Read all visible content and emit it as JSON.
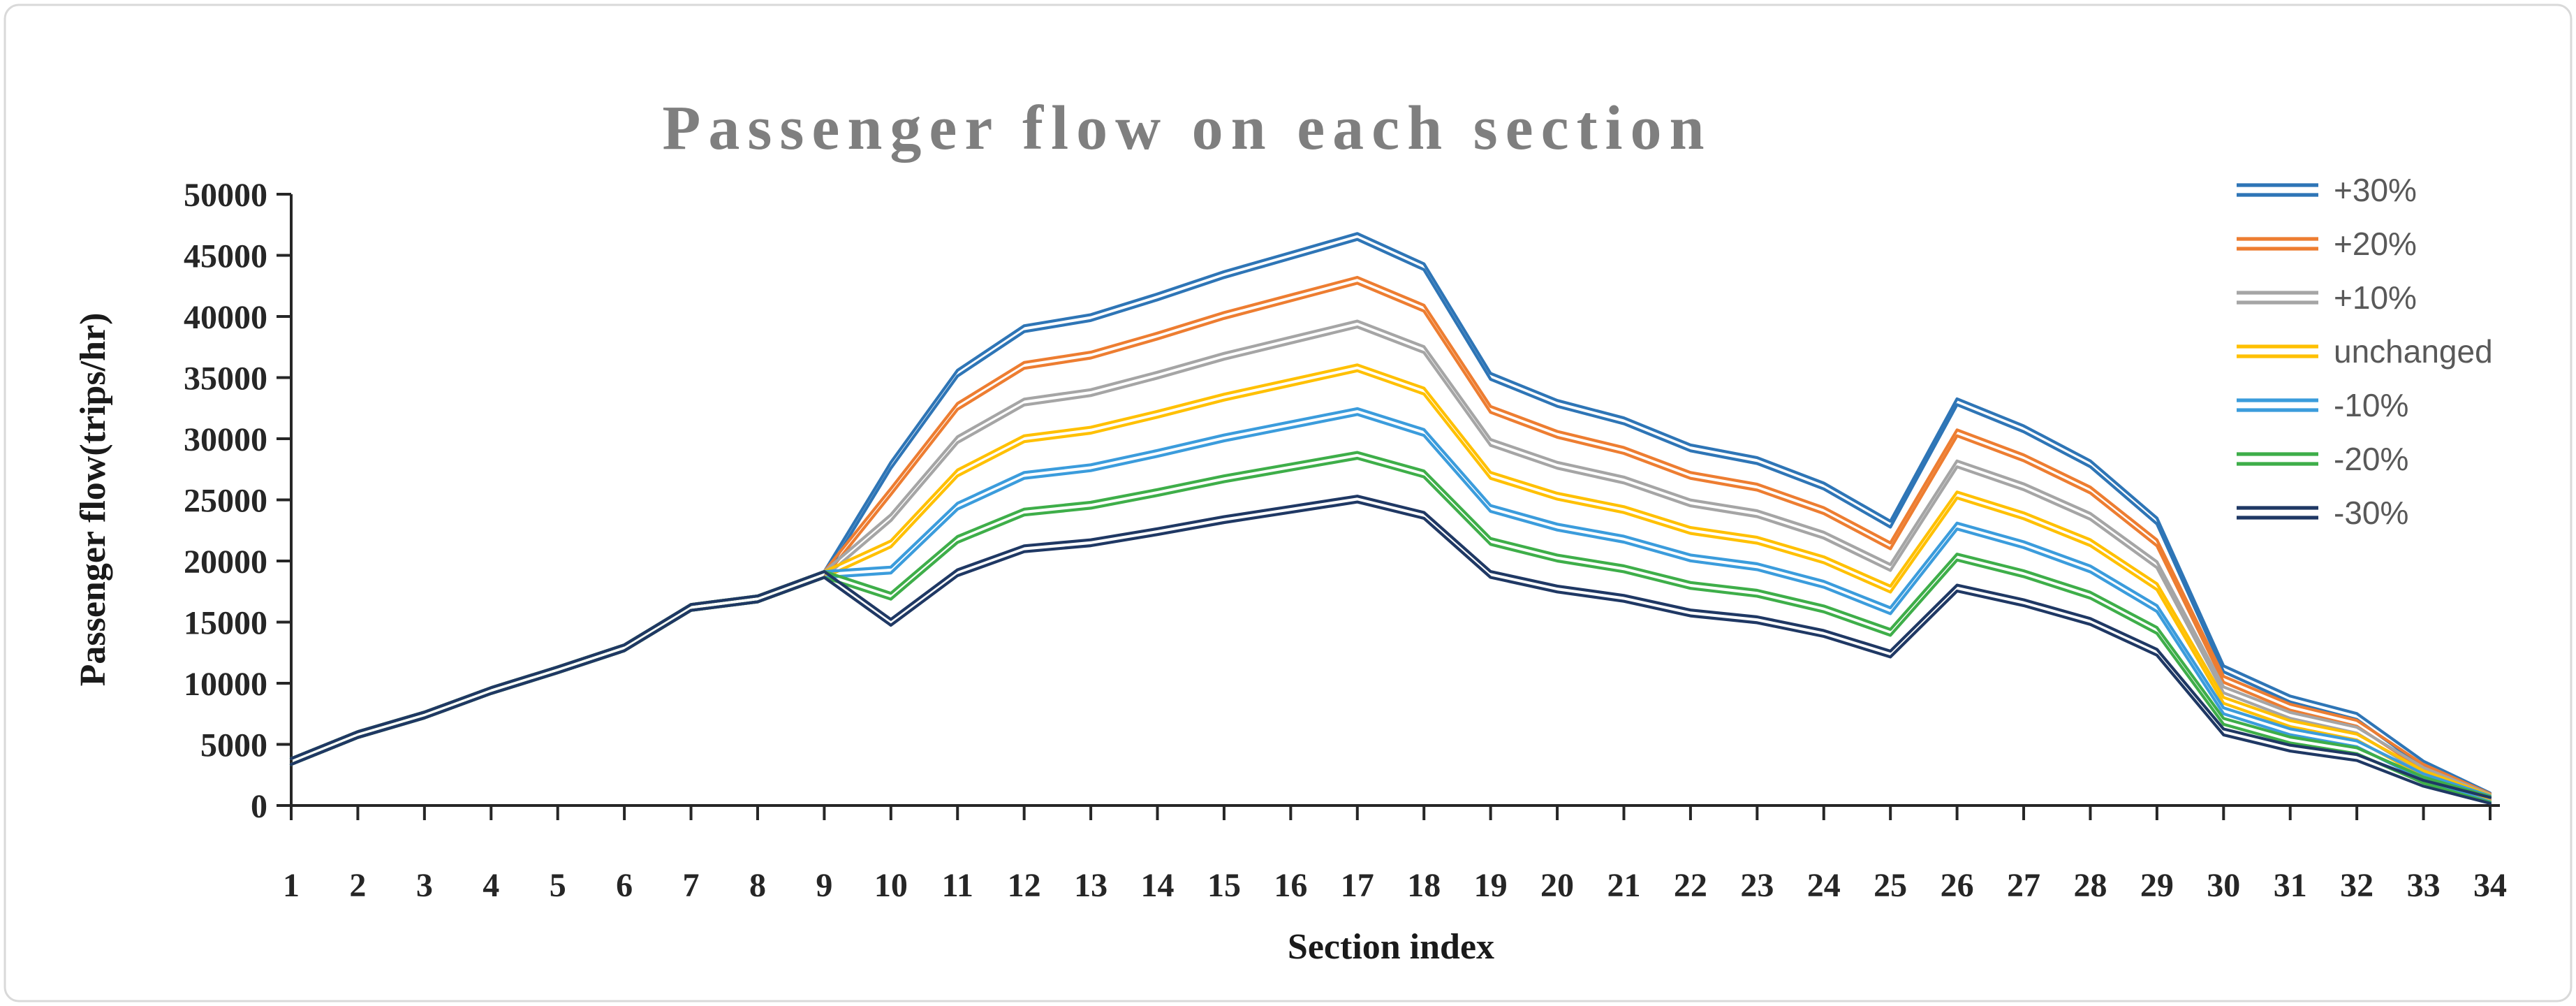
{
  "chart_data": {
    "type": "line",
    "title": "Passenger flow on each section",
    "xlabel": "Section index",
    "ylabel": "Passenger flow(trips/hr)",
    "x_categories": [
      1,
      2,
      3,
      4,
      5,
      6,
      7,
      8,
      9,
      10,
      11,
      12,
      13,
      14,
      15,
      16,
      17,
      18,
      19,
      20,
      21,
      22,
      23,
      24,
      25,
      26,
      27,
      28,
      29,
      30,
      31,
      32,
      33,
      34
    ],
    "y_ticks": [
      0,
      5000,
      10000,
      15000,
      20000,
      25000,
      30000,
      35000,
      40000,
      45000,
      50000
    ],
    "ylim": [
      0,
      50000
    ],
    "grid": false,
    "legend_position": "right",
    "line_style": "double-parallel-lines",
    "note_sections_1_9_identical": true,
    "series": [
      {
        "name": "+30%",
        "color": "#2E75B6",
        "factor": 1.3,
        "values": [
          3600,
          5800,
          7400,
          9400,
          11100,
          12900,
          16200,
          16900,
          18900,
          27820,
          35360,
          39000,
          39910,
          41600,
          43420,
          44980,
          46540,
          44070,
          35100,
          32890,
          31460,
          29250,
          28210,
          26130,
          23010,
          33020,
          30810,
          27950,
          23270,
          11180,
          8710,
          7280,
          3380,
          780
        ]
      },
      {
        "name": "+20%",
        "color": "#ED7D31",
        "factor": 1.2,
        "values": [
          3600,
          5800,
          7400,
          9400,
          11100,
          12900,
          16200,
          16900,
          18900,
          25680,
          32640,
          36000,
          36840,
          38400,
          40080,
          41520,
          42960,
          40680,
          32400,
          30360,
          29040,
          27000,
          26040,
          24120,
          21240,
          30480,
          28440,
          25800,
          21480,
          10320,
          8040,
          6720,
          3120,
          720
        ]
      },
      {
        "name": "+10%",
        "color": "#A5A5A5",
        "factor": 1.1,
        "values": [
          3600,
          5800,
          7400,
          9400,
          11100,
          12900,
          16200,
          16900,
          18900,
          23540,
          29920,
          33000,
          33770,
          35200,
          36740,
          38060,
          39380,
          37290,
          29700,
          27830,
          26620,
          24750,
          23870,
          22110,
          19470,
          27940,
          26070,
          23650,
          19690,
          9460,
          7370,
          6160,
          2860,
          660
        ]
      },
      {
        "name": "unchanged",
        "color": "#FFC000",
        "factor": 1.0,
        "values": [
          3600,
          5800,
          7400,
          9400,
          11100,
          12900,
          16200,
          16900,
          18900,
          21400,
          27200,
          30000,
          30700,
          32000,
          33400,
          34600,
          35800,
          33900,
          27000,
          25300,
          24200,
          22500,
          21700,
          20100,
          17700,
          25400,
          23700,
          21500,
          17900,
          8600,
          6700,
          5600,
          2600,
          600
        ]
      },
      {
        "name": "-10%",
        "color": "#3B9CDC",
        "factor": 0.9,
        "values": [
          3600,
          5800,
          7400,
          9400,
          11100,
          12900,
          16200,
          16900,
          18900,
          19260,
          24480,
          27000,
          27630,
          28800,
          30060,
          31140,
          32220,
          30510,
          24300,
          22770,
          21780,
          20250,
          19530,
          18090,
          15930,
          22860,
          21330,
          19350,
          16110,
          7740,
          6030,
          5040,
          2340,
          540
        ]
      },
      {
        "name": "-20%",
        "color": "#3EAE49",
        "factor": 0.8,
        "values": [
          3600,
          5800,
          7400,
          9400,
          11100,
          12900,
          16200,
          16900,
          18900,
          17120,
          21760,
          24000,
          24560,
          25600,
          26720,
          27680,
          28640,
          27120,
          21600,
          20240,
          19360,
          18000,
          17360,
          16080,
          14160,
          20320,
          18960,
          17200,
          14320,
          6880,
          5360,
          4480,
          2080,
          480
        ]
      },
      {
        "name": "-30%",
        "color": "#1F3864",
        "factor": 0.7,
        "values": [
          3600,
          5800,
          7400,
          9400,
          11100,
          12900,
          16200,
          16900,
          18900,
          14980,
          19040,
          21000,
          21490,
          22400,
          23380,
          24220,
          25060,
          23730,
          18900,
          17710,
          16940,
          15750,
          15190,
          14070,
          12390,
          17780,
          16590,
          15050,
          12530,
          6020,
          4690,
          3920,
          1820,
          420
        ]
      }
    ]
  },
  "frame": {
    "border_color": "#D9D9D9",
    "background": "#FFFFFF",
    "axis_color": "#262626",
    "title_color": "#7F7F7F",
    "legend_text_color": "#595959"
  }
}
